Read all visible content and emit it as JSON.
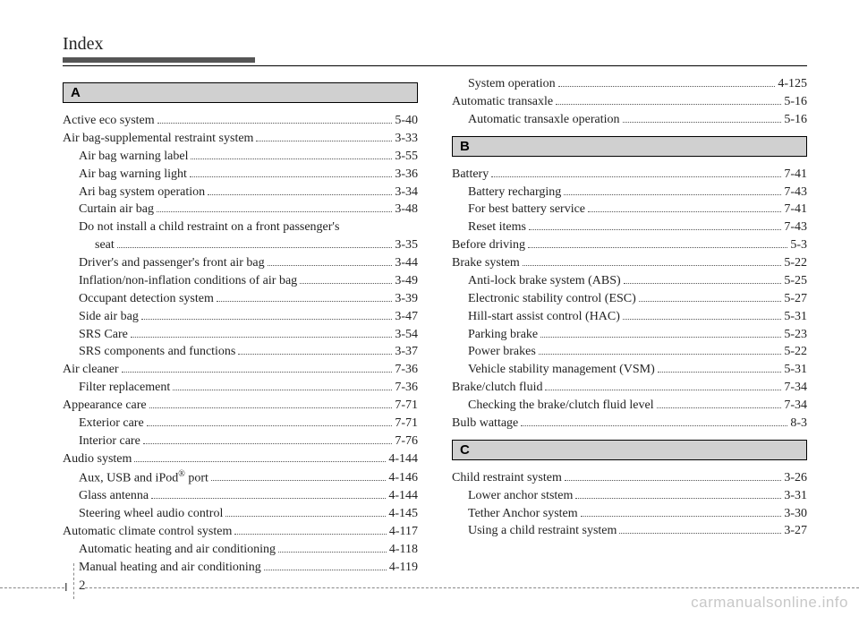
{
  "header": {
    "title": "Index"
  },
  "footer": {
    "section": "I",
    "page": "2"
  },
  "watermark": "carmanualsonline.info",
  "left": {
    "sections": [
      {
        "letter": "A",
        "entries": [
          {
            "label": "Active eco system",
            "page": "5-40",
            "indent": 0
          },
          {
            "label": "Air bag-supplemental restraint system",
            "page": "3-33",
            "indent": 0
          },
          {
            "label": "Air bag warning label",
            "page": "3-55",
            "indent": 1
          },
          {
            "label": "Air bag warning light",
            "page": "3-36",
            "indent": 1
          },
          {
            "label": "Ari bag system operation",
            "page": "3-34",
            "indent": 1
          },
          {
            "label": "Curtain air bag",
            "page": "3-48",
            "indent": 1
          },
          {
            "wrap": "Do not install a child restraint on a front passenger's",
            "indent": 1
          },
          {
            "label": "seat",
            "page": "3-35",
            "indent": 2
          },
          {
            "label": "Driver's and passenger's front air bag",
            "page": "3-44",
            "indent": 1
          },
          {
            "label": "Inflation/non-inflation conditions of air bag",
            "page": "3-49",
            "indent": 1
          },
          {
            "label": "Occupant detection system",
            "page": "3-39",
            "indent": 1
          },
          {
            "label": "Side air bag",
            "page": "3-47",
            "indent": 1
          },
          {
            "label": "SRS Care",
            "page": "3-54",
            "indent": 1
          },
          {
            "label": "SRS components and functions",
            "page": "3-37",
            "indent": 1
          },
          {
            "label": "Air cleaner",
            "page": "7-36",
            "indent": 0
          },
          {
            "label": "Filter replacement",
            "page": "7-36",
            "indent": 1
          },
          {
            "label": "Appearance care",
            "page": "7-71",
            "indent": 0
          },
          {
            "label": "Exterior care",
            "page": "7-71",
            "indent": 1
          },
          {
            "label": "Interior care",
            "page": "7-76",
            "indent": 1
          },
          {
            "label": "Audio system",
            "page": "4-144",
            "indent": 0
          },
          {
            "html": "Aux, USB and iPod<span class=\"super\">®</span> port",
            "page": "4-146",
            "indent": 1
          },
          {
            "label": "Glass antenna",
            "page": "4-144",
            "indent": 1
          },
          {
            "label": "Steering wheel audio control",
            "page": "4-145",
            "indent": 1
          },
          {
            "label": "Automatic climate control system",
            "page": "4-117",
            "indent": 0
          },
          {
            "label": "Automatic heating and air conditioning",
            "page": "4-118",
            "indent": 1
          },
          {
            "label": "Manual heating and air conditioning",
            "page": "4-119",
            "indent": 1
          }
        ]
      }
    ]
  },
  "right": {
    "pre": [
      {
        "label": "System operation",
        "page": "4-125",
        "indent": 1
      },
      {
        "label": "Automatic transaxle",
        "page": "5-16",
        "indent": 0
      },
      {
        "label": "Automatic transaxle operation",
        "page": "5-16",
        "indent": 1
      }
    ],
    "sections": [
      {
        "letter": "B",
        "entries": [
          {
            "label": "Battery",
            "page": "7-41",
            "indent": 0
          },
          {
            "label": "Battery recharging",
            "page": "7-43",
            "indent": 1
          },
          {
            "label": "For best battery service",
            "page": "7-41",
            "indent": 1
          },
          {
            "label": "Reset items",
            "page": "7-43",
            "indent": 1
          },
          {
            "label": "Before driving",
            "page": "5-3",
            "indent": 0
          },
          {
            "label": "Brake system",
            "page": "5-22",
            "indent": 0
          },
          {
            "label": "Anti-lock brake system (ABS)",
            "page": "5-25",
            "indent": 1
          },
          {
            "label": "Electronic stability control (ESC)",
            "page": "5-27",
            "indent": 1
          },
          {
            "label": "Hill-start assist control (HAC)",
            "page": "5-31",
            "indent": 1
          },
          {
            "label": "Parking brake",
            "page": "5-23",
            "indent": 1
          },
          {
            "label": "Power brakes",
            "page": "5-22",
            "indent": 1
          },
          {
            "label": "Vehicle stability management (VSM)",
            "page": "5-31",
            "indent": 1
          },
          {
            "label": "Brake/clutch fluid",
            "page": "7-34",
            "indent": 0
          },
          {
            "label": "Checking the brake/clutch fluid level",
            "page": "7-34",
            "indent": 1
          },
          {
            "label": "Bulb wattage",
            "page": "8-3",
            "indent": 0
          }
        ]
      },
      {
        "letter": "C",
        "entries": [
          {
            "label": "Child restraint system",
            "page": "3-26",
            "indent": 0
          },
          {
            "label": "Lower anchor ststem",
            "page": "3-31",
            "indent": 1
          },
          {
            "label": "Tether Anchor system",
            "page": "3-30",
            "indent": 1
          },
          {
            "label": "Using a child restraint system",
            "page": "3-27",
            "indent": 1
          }
        ]
      }
    ]
  }
}
